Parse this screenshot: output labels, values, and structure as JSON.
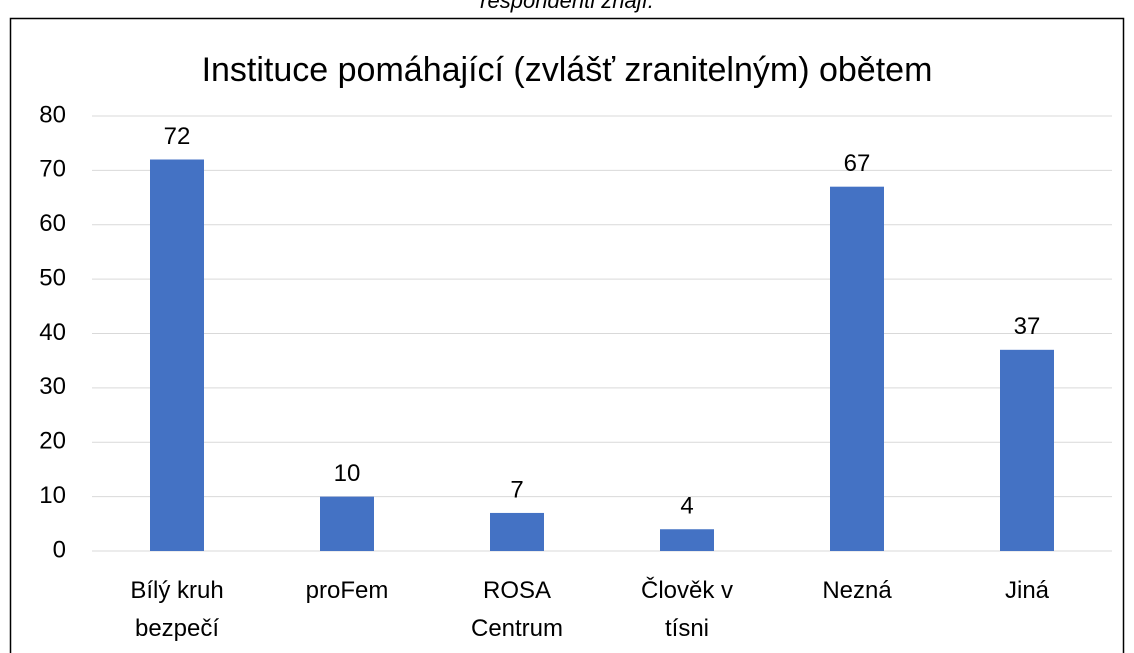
{
  "caption": "respondenti znají.",
  "chart_data": {
    "type": "bar",
    "title": "Instituce pomáhající (zvlášť zranitelným) obětem",
    "categories": [
      "Bílý kruh bezpečí",
      "proFem",
      "ROSA Centrum",
      "Člověk v tísni",
      "Nezná",
      "Jiná"
    ],
    "values": [
      72,
      10,
      7,
      4,
      67,
      37
    ],
    "color": "#4472c4",
    "ylim": [
      0,
      80
    ],
    "yticks": [
      0,
      10,
      20,
      30,
      40,
      50,
      60,
      70,
      80
    ],
    "grid": true
  }
}
